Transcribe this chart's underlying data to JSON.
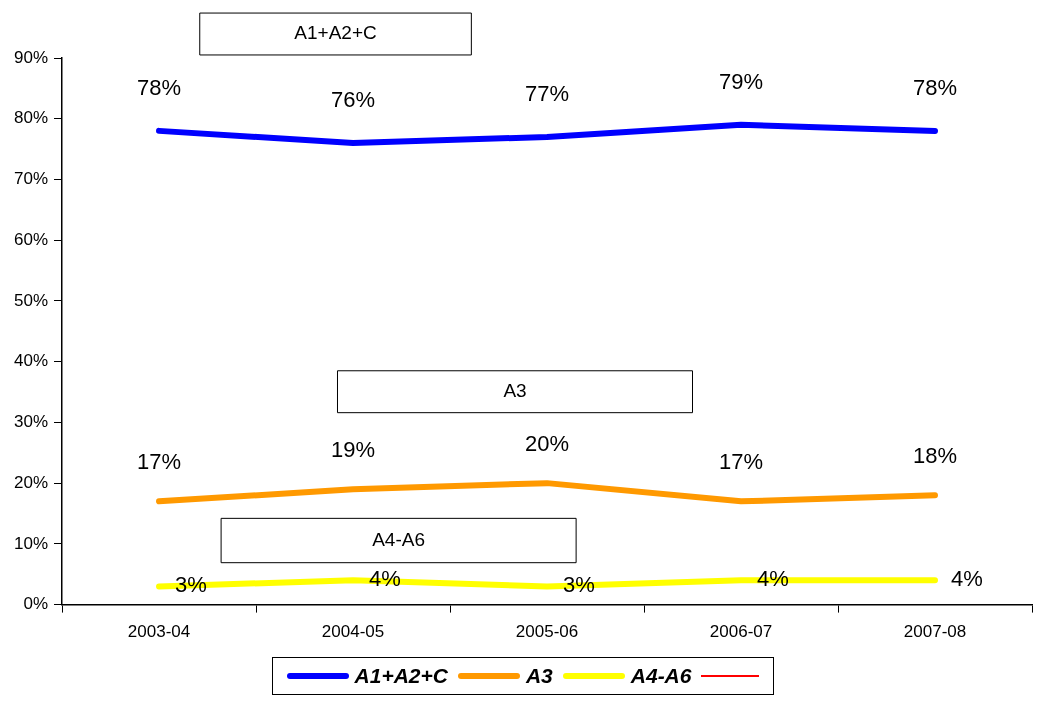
{
  "chart_data": {
    "type": "line",
    "categories": [
      "2003-04",
      "2004-05",
      "2005-06",
      "2006-07",
      "2007-08"
    ],
    "series": [
      {
        "name": "A1+A2+C",
        "color": "#0000ff",
        "values": [
          78,
          76,
          77,
          79,
          78
        ],
        "value_labels": [
          "78%",
          "76%",
          "77%",
          "79%",
          "78%"
        ]
      },
      {
        "name": "A3",
        "color": "#ff9900",
        "values": [
          17,
          19,
          20,
          17,
          18
        ],
        "value_labels": [
          "17%",
          "19%",
          "20%",
          "17%",
          "18%"
        ]
      },
      {
        "name": "A4-A6",
        "color": "#ffff00",
        "values": [
          3,
          4,
          3,
          4,
          4
        ],
        "value_labels": [
          "3%",
          "4%",
          "3%",
          "4%",
          "4%"
        ]
      }
    ],
    "annotations": [
      "A1+A2+C",
      "A3",
      "A4-A6"
    ],
    "ylim": [
      0,
      90
    ],
    "yticks": [
      {
        "value": 0,
        "label": "0%"
      },
      {
        "value": 10,
        "label": "10%"
      },
      {
        "value": 20,
        "label": "20%"
      },
      {
        "value": 30,
        "label": "30%"
      },
      {
        "value": 40,
        "label": "40%"
      },
      {
        "value": 50,
        "label": "50%"
      },
      {
        "value": 60,
        "label": "60%"
      },
      {
        "value": 70,
        "label": "70%"
      },
      {
        "value": 80,
        "label": "80%"
      },
      {
        "value": 90,
        "label": "90%"
      }
    ],
    "grid": false,
    "legend": "bottom",
    "marker": "none",
    "line_style": "solid"
  }
}
